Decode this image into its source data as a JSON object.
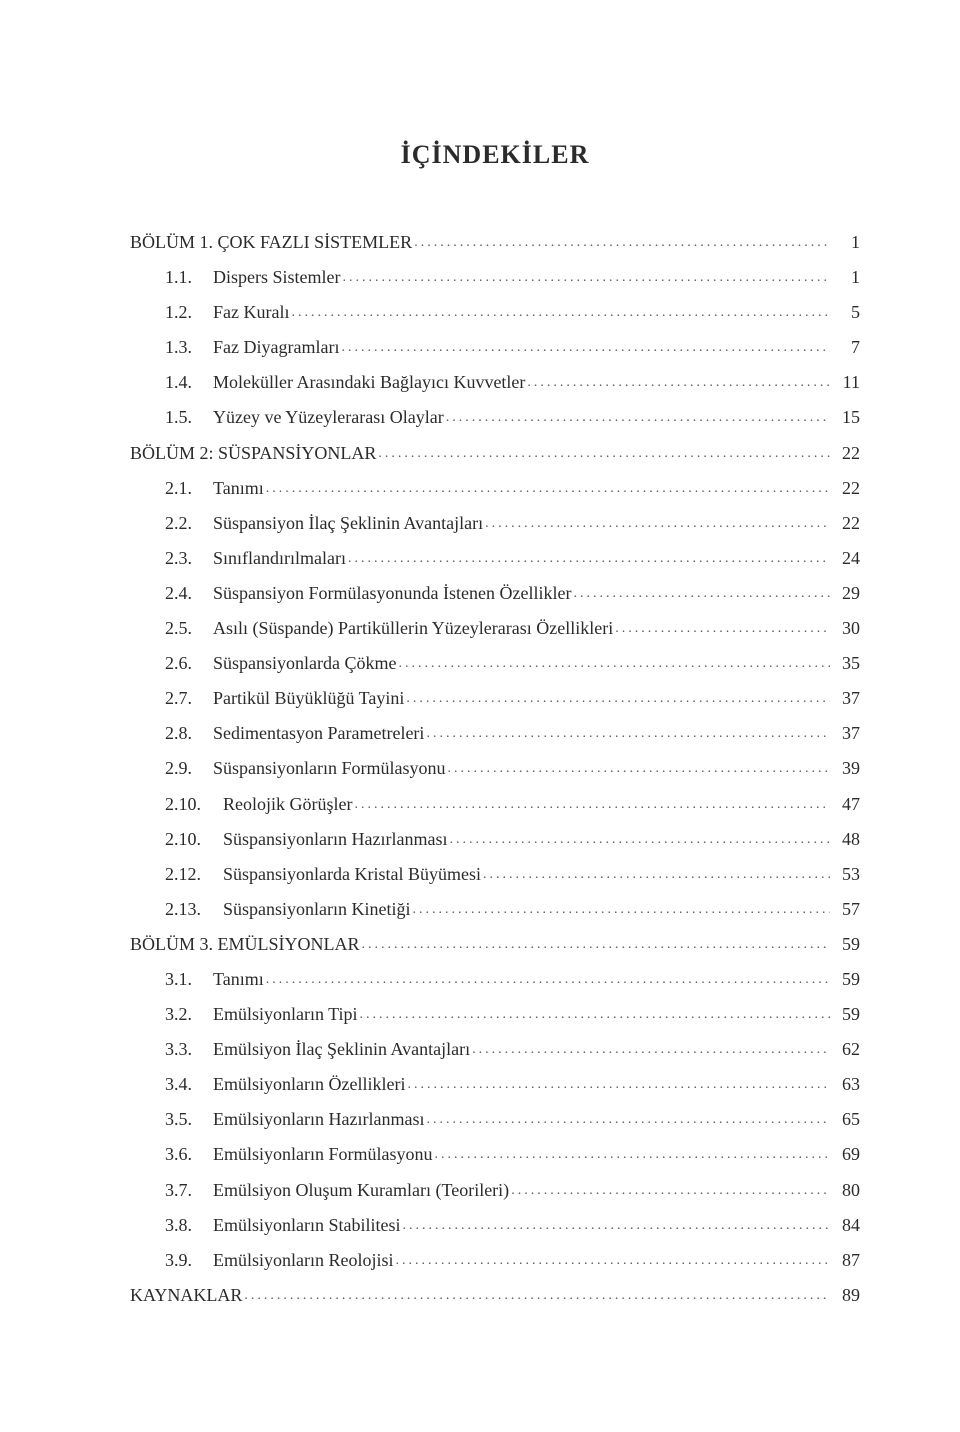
{
  "title": "İÇİNDEKİLER",
  "entries": [
    {
      "indent": 0,
      "num": "",
      "label": "BÖLÜM 1. ÇOK FAZLI SİSTEMLER",
      "page": "1"
    },
    {
      "indent": 1,
      "num": "1.1.",
      "label": "Dispers Sistemler",
      "page": "1"
    },
    {
      "indent": 1,
      "num": "1.2.",
      "label": "Faz Kuralı",
      "page": "5"
    },
    {
      "indent": 1,
      "num": "1.3.",
      "label": "Faz Diyagramları",
      "page": "7"
    },
    {
      "indent": 1,
      "num": "1.4.",
      "label": "Moleküller Arasındaki Bağlayıcı Kuvvetler",
      "page": "11"
    },
    {
      "indent": 1,
      "num": "1.5.",
      "label": "Yüzey ve Yüzeylerarası Olaylar",
      "page": "15"
    },
    {
      "indent": 0,
      "num": "",
      "label": "BÖLÜM 2: SÜSPANSİYONLAR",
      "page": "22"
    },
    {
      "indent": 1,
      "num": "2.1.",
      "label": "Tanımı",
      "page": "22"
    },
    {
      "indent": 1,
      "num": "2.2.",
      "label": "Süspansiyon İlaç Şeklinin Avantajları",
      "page": "22"
    },
    {
      "indent": 1,
      "num": "2.3.",
      "label": "Sınıflandırılmaları",
      "page": "24"
    },
    {
      "indent": 1,
      "num": "2.4.",
      "label": "Süspansiyon Formülasyonunda İstenen Özellikler",
      "page": "29"
    },
    {
      "indent": 1,
      "num": "2.5.",
      "label": "Asılı (Süspande) Partiküllerin Yüzeylerarası Özellikleri",
      "page": "30"
    },
    {
      "indent": 1,
      "num": "2.6.",
      "label": "Süspansiyonlarda Çökme",
      "page": "35"
    },
    {
      "indent": 1,
      "num": "2.7.",
      "label": "Partikül Büyüklüğü Tayini",
      "page": "37"
    },
    {
      "indent": 1,
      "num": "2.8.",
      "label": "Sedimentasyon Parametreleri",
      "page": "37"
    },
    {
      "indent": 1,
      "num": "2.9.",
      "label": "Süspansiyonların Formülasyonu",
      "page": "39"
    },
    {
      "indent": 1,
      "num": "2.10.",
      "label": "Reolojik Görüşler",
      "page": "47",
      "wide": true
    },
    {
      "indent": 1,
      "num": "2.10.",
      "label": "Süspansiyonların Hazırlanması",
      "page": "48",
      "wide": true
    },
    {
      "indent": 1,
      "num": "2.12.",
      "label": "Süspansiyonlarda Kristal Büyümesi",
      "page": "53",
      "wide": true
    },
    {
      "indent": 1,
      "num": "2.13.",
      "label": "Süspansiyonların Kinetiği",
      "page": "57",
      "wide": true
    },
    {
      "indent": 0,
      "num": "",
      "label": "BÖLÜM 3. EMÜLSİYONLAR",
      "page": "59"
    },
    {
      "indent": 1,
      "num": "3.1.",
      "label": "Tanımı",
      "page": "59"
    },
    {
      "indent": 1,
      "num": "3.2.",
      "label": "Emülsiyonların Tipi",
      "page": "59"
    },
    {
      "indent": 1,
      "num": "3.3.",
      "label": "Emülsiyon İlaç Şeklinin Avantajları",
      "page": "62"
    },
    {
      "indent": 1,
      "num": "3.4.",
      "label": "Emülsiyonların Özellikleri",
      "page": "63"
    },
    {
      "indent": 1,
      "num": "3.5.",
      "label": "Emülsiyonların Hazırlanması",
      "page": "65"
    },
    {
      "indent": 1,
      "num": "3.6.",
      "label": "Emülsiyonların Formülasyonu",
      "page": "69"
    },
    {
      "indent": 1,
      "num": "3.7.",
      "label": "Emülsiyon Oluşum Kuramları (Teorileri)",
      "page": "80"
    },
    {
      "indent": 1,
      "num": "3.8.",
      "label": "Emülsiyonların Stabilitesi",
      "page": "84"
    },
    {
      "indent": 1,
      "num": "3.9.",
      "label": "Emülsiyonların Reolojisi",
      "page": "87"
    },
    {
      "indent": 0,
      "num": "",
      "label": "KAYNAKLAR",
      "page": "89"
    }
  ]
}
